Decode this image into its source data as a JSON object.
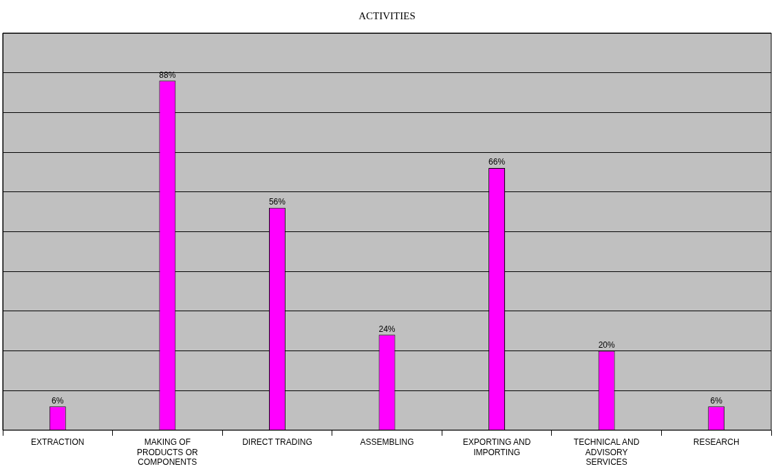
{
  "chart_data": {
    "type": "bar",
    "title": "ACTIVITIES",
    "categories": [
      "EXTRACTION",
      "MAKING OF PRODUCTS OR COMPONENTS",
      "DIRECT TRADING",
      "ASSEMBLING",
      "EXPORTING AND IMPORTING",
      "TECHNICAL AND ADVISORY SERVICES",
      "RESEARCH"
    ],
    "values": [
      6,
      88,
      56,
      24,
      66,
      20,
      6
    ],
    "value_labels": [
      "6%",
      "88%",
      "56%",
      "24%",
      "66%",
      "20%",
      "6%"
    ],
    "color": "#ff00ff",
    "ylim": [
      0,
      100
    ],
    "yticks": [
      {
        "value": 0,
        "label": null
      },
      {
        "value": 10,
        "label": null
      },
      {
        "value": 20,
        "label": null
      },
      {
        "value": 30,
        "label": null
      },
      {
        "value": 40,
        "label": null
      },
      {
        "value": 50,
        "label": null
      },
      {
        "value": 60,
        "label": null
      },
      {
        "value": 70,
        "label": null
      },
      {
        "value": 80,
        "label": null
      },
      {
        "value": 90,
        "label": null
      },
      {
        "value": 100,
        "label": null
      }
    ],
    "tick_labels": "x",
    "grid": "y",
    "legend": false
  }
}
